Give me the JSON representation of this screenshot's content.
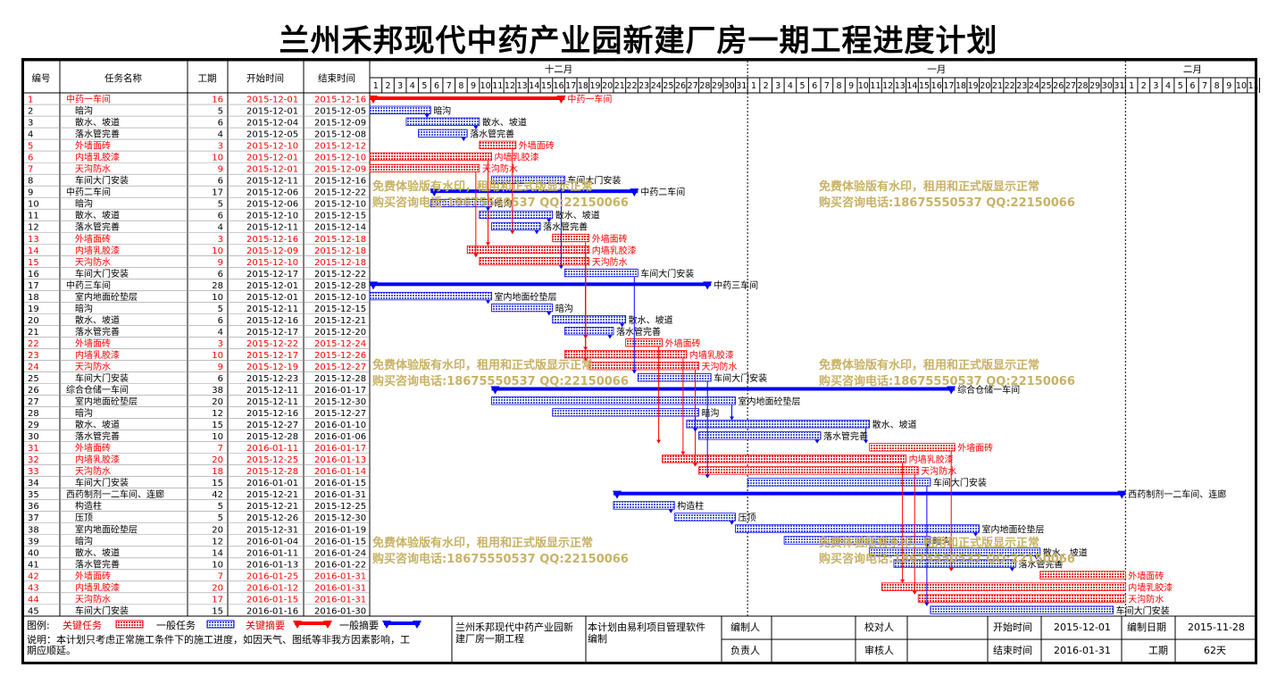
{
  "title": "兰州禾邦现代中药产业园新建厂房一期工程进度计划",
  "headers": {
    "id": "编号",
    "name": "任务名称",
    "dur": "工期",
    "start": "开始时间",
    "end": "结束时间"
  },
  "months": [
    {
      "label": "十二月",
      "days": 31
    },
    {
      "label": "一月",
      "days": 31
    },
    {
      "label": "二月",
      "days": 11
    }
  ],
  "watermarks": [
    "免费体验版有水印，租用和正式版显示正常",
    "购买咨询电话:18675550537 QQ:22150066"
  ],
  "colors": {
    "critical": "#ff0000",
    "normal": "#0000ff",
    "critical_fill": "#dd3333",
    "normal_fill": "#4f5fcf",
    "watermark": "#c8b266"
  },
  "chart_data": {
    "type": "gantt",
    "timeline_start": "2015-12-01",
    "timeline_end": "2016-02-11",
    "tasks": [
      {
        "id": "1",
        "name": "中药一车间",
        "dur": "16",
        "start": "2015-12-01",
        "end": "2015-12-16",
        "kind": "summary",
        "critical": true,
        "label": "中药一车间"
      },
      {
        "id": "2",
        "name": "暗沟",
        "dur": "5",
        "start": "2015-12-01",
        "end": "2015-12-05",
        "kind": "task",
        "critical": false,
        "label": "暗沟"
      },
      {
        "id": "3",
        "name": "散水、坡道",
        "dur": "6",
        "start": "2015-12-04",
        "end": "2015-12-09",
        "kind": "task",
        "critical": false,
        "label": "散水、坡道"
      },
      {
        "id": "4",
        "name": "落水管完善",
        "dur": "4",
        "start": "2015-12-05",
        "end": "2015-12-08",
        "kind": "task",
        "critical": false,
        "label": "落水管完善"
      },
      {
        "id": "5",
        "name": "外墙面砖",
        "dur": "3",
        "start": "2015-12-10",
        "end": "2015-12-12",
        "kind": "task",
        "critical": true,
        "label": "外墙面砖"
      },
      {
        "id": "6",
        "name": "内墙乳胶漆",
        "dur": "10",
        "start": "2015-12-01",
        "end": "2015-12-10",
        "kind": "task",
        "critical": true,
        "label": "内墙乳胶漆"
      },
      {
        "id": "7",
        "name": "天沟防水",
        "dur": "9",
        "start": "2015-12-01",
        "end": "2015-12-09",
        "kind": "task",
        "critical": true,
        "label": "天沟防水"
      },
      {
        "id": "8",
        "name": "车间大门安装",
        "dur": "6",
        "start": "2015-12-11",
        "end": "2015-12-16",
        "kind": "task",
        "critical": false,
        "label": "车间大门安装"
      },
      {
        "id": "9",
        "name": "中药二车间",
        "dur": "17",
        "start": "2015-12-06",
        "end": "2015-12-22",
        "kind": "summary",
        "critical": false,
        "label": "中药二车间"
      },
      {
        "id": "10",
        "name": "暗沟",
        "dur": "5",
        "start": "2015-12-06",
        "end": "2015-12-10",
        "kind": "task",
        "critical": false,
        "label": "暗沟"
      },
      {
        "id": "11",
        "name": "散水、坡道",
        "dur": "6",
        "start": "2015-12-10",
        "end": "2015-12-15",
        "kind": "task",
        "critical": false,
        "label": "散水、坡道"
      },
      {
        "id": "12",
        "name": "落水管完善",
        "dur": "4",
        "start": "2015-12-11",
        "end": "2015-12-14",
        "kind": "task",
        "critical": false,
        "label": "落水管完善"
      },
      {
        "id": "13",
        "name": "外墙面砖",
        "dur": "3",
        "start": "2015-12-16",
        "end": "2015-12-18",
        "kind": "task",
        "critical": true,
        "label": "外墙面砖"
      },
      {
        "id": "14",
        "name": "内墙乳胶漆",
        "dur": "10",
        "start": "2015-12-09",
        "end": "2015-12-18",
        "kind": "task",
        "critical": true,
        "label": "内墙乳胶漆"
      },
      {
        "id": "15",
        "name": "天沟防水",
        "dur": "9",
        "start": "2015-12-10",
        "end": "2015-12-18",
        "kind": "task",
        "critical": true,
        "label": "天沟防水"
      },
      {
        "id": "16",
        "name": "车间大门安装",
        "dur": "6",
        "start": "2015-12-17",
        "end": "2015-12-22",
        "kind": "task",
        "critical": false,
        "label": "车间大门安装"
      },
      {
        "id": "17",
        "name": "中药三车间",
        "dur": "28",
        "start": "2015-12-01",
        "end": "2015-12-28",
        "kind": "summary",
        "critical": false,
        "label": "中药三车间"
      },
      {
        "id": "18",
        "name": "室内地面砼垫层",
        "dur": "10",
        "start": "2015-12-01",
        "end": "2015-12-10",
        "kind": "task",
        "critical": false,
        "label": "室内地面砼垫层"
      },
      {
        "id": "19",
        "name": "暗沟",
        "dur": "5",
        "start": "2015-12-11",
        "end": "2015-12-15",
        "kind": "task",
        "critical": false,
        "label": "暗沟"
      },
      {
        "id": "20",
        "name": "散水、坡道",
        "dur": "6",
        "start": "2015-12-16",
        "end": "2015-12-21",
        "kind": "task",
        "critical": false,
        "label": "散水、坡道"
      },
      {
        "id": "21",
        "name": "落水管完善",
        "dur": "4",
        "start": "2015-12-17",
        "end": "2015-12-20",
        "kind": "task",
        "critical": false,
        "label": "落水管完善"
      },
      {
        "id": "22",
        "name": "外墙面砖",
        "dur": "3",
        "start": "2015-12-22",
        "end": "2015-12-24",
        "kind": "task",
        "critical": true,
        "label": "外墙面砖"
      },
      {
        "id": "23",
        "name": "内墙乳胶漆",
        "dur": "10",
        "start": "2015-12-17",
        "end": "2015-12-26",
        "kind": "task",
        "critical": true,
        "label": "内墙乳胶漆"
      },
      {
        "id": "24",
        "name": "天沟防水",
        "dur": "9",
        "start": "2015-12-19",
        "end": "2015-12-27",
        "kind": "task",
        "critical": true,
        "label": "天沟防水"
      },
      {
        "id": "25",
        "name": "车间大门安装",
        "dur": "6",
        "start": "2015-12-23",
        "end": "2015-12-28",
        "kind": "task",
        "critical": false,
        "label": "车间大门安装"
      },
      {
        "id": "26",
        "name": "综合仓储一车间",
        "dur": "38",
        "start": "2015-12-11",
        "end": "2016-01-17",
        "kind": "summary",
        "critical": false,
        "label": "综合仓储一车间"
      },
      {
        "id": "27",
        "name": "室内地面砼垫层",
        "dur": "20",
        "start": "2015-12-11",
        "end": "2015-12-30",
        "kind": "task",
        "critical": false,
        "label": "室内地面砼垫层"
      },
      {
        "id": "28",
        "name": "暗沟",
        "dur": "12",
        "start": "2015-12-16",
        "end": "2015-12-27",
        "kind": "task",
        "critical": false,
        "label": "暗沟"
      },
      {
        "id": "29",
        "name": "散水、坡道",
        "dur": "15",
        "start": "2015-12-27",
        "end": "2016-01-10",
        "kind": "task",
        "critical": false,
        "label": "散水、坡道"
      },
      {
        "id": "30",
        "name": "落水管完善",
        "dur": "10",
        "start": "2015-12-28",
        "end": "2016-01-06",
        "kind": "task",
        "critical": false,
        "label": "落水管完善"
      },
      {
        "id": "31",
        "name": "外墙面砖",
        "dur": "7",
        "start": "2016-01-11",
        "end": "2016-01-17",
        "kind": "task",
        "critical": true,
        "label": "外墙面砖"
      },
      {
        "id": "32",
        "name": "内墙乳胶漆",
        "dur": "20",
        "start": "2015-12-25",
        "end": "2016-01-13",
        "kind": "task",
        "critical": true,
        "label": "内墙乳胶漆"
      },
      {
        "id": "33",
        "name": "天沟防水",
        "dur": "18",
        "start": "2015-12-28",
        "end": "2016-01-14",
        "kind": "task",
        "critical": true,
        "label": "天沟防水"
      },
      {
        "id": "34",
        "name": "车间大门安装",
        "dur": "15",
        "start": "2016-01-01",
        "end": "2016-01-15",
        "kind": "task",
        "critical": false,
        "label": "车间大门安装"
      },
      {
        "id": "35",
        "name": "西药制剂一二车间、连廊",
        "dur": "42",
        "start": "2015-12-21",
        "end": "2016-01-31",
        "kind": "summary",
        "critical": false,
        "label": "西药制剂一二车间、连廊"
      },
      {
        "id": "36",
        "name": "构造柱",
        "dur": "5",
        "start": "2015-12-21",
        "end": "2015-12-25",
        "kind": "task",
        "critical": false,
        "label": "构造柱"
      },
      {
        "id": "37",
        "name": "压顶",
        "dur": "5",
        "start": "2015-12-26",
        "end": "2015-12-30",
        "kind": "task",
        "critical": false,
        "label": "压顶"
      },
      {
        "id": "38",
        "name": "室内地面砼垫层",
        "dur": "20",
        "start": "2015-12-31",
        "end": "2016-01-19",
        "kind": "task",
        "critical": false,
        "label": "室内地面砼垫层"
      },
      {
        "id": "39",
        "name": "暗沟",
        "dur": "12",
        "start": "2016-01-04",
        "end": "2016-01-15",
        "kind": "task",
        "critical": false,
        "label": "暗沟"
      },
      {
        "id": "40",
        "name": "散水、坡道",
        "dur": "14",
        "start": "2016-01-11",
        "end": "2016-01-24",
        "kind": "task",
        "critical": false,
        "label": "散水、坡道"
      },
      {
        "id": "41",
        "name": "落水管完善",
        "dur": "10",
        "start": "2016-01-13",
        "end": "2016-01-22",
        "kind": "task",
        "critical": false,
        "label": "落水管完善"
      },
      {
        "id": "42",
        "name": "外墙面砖",
        "dur": "7",
        "start": "2016-01-25",
        "end": "2016-01-31",
        "kind": "task",
        "critical": true,
        "label": "外墙面砖"
      },
      {
        "id": "43",
        "name": "内墙乳胶漆",
        "dur": "20",
        "start": "2016-01-12",
        "end": "2016-01-31",
        "kind": "task",
        "critical": true,
        "label": "内墙乳胶漆"
      },
      {
        "id": "44",
        "name": "天沟防水",
        "dur": "17",
        "start": "2016-01-15",
        "end": "2016-01-31",
        "kind": "task",
        "critical": true,
        "label": "天沟防水"
      },
      {
        "id": "45",
        "name": "车间大门安装",
        "dur": "15",
        "start": "2016-01-16",
        "end": "2016-01-30",
        "kind": "task",
        "critical": false,
        "label": "车间大门安装"
      }
    ]
  },
  "legend": {
    "title": "图例:",
    "items": [
      "关键任务",
      "一般任务",
      "关键摘要",
      "一般摘要"
    ]
  },
  "note": [
    "说明：本计划只考虑正常施工条件下的施工进度，如因天气、图纸等非我方因素影响，工",
    "期应顺延。"
  ],
  "footer": {
    "project_line1": "兰州禾邦现代中药产业园新",
    "project_line2": "建厂房一期工程",
    "software_line1": "本计划由易利项目管理软件",
    "software_line2": "编制",
    "prepared_by": "编制人",
    "checked_by": "校对人",
    "responsible": "负责人",
    "reviewed_by": "审核人",
    "start_label": "开始时间",
    "start_value": "2015-12-01",
    "end_label": "结束时间",
    "end_value": "2016-01-31",
    "made_label": "编制日期",
    "made_value": "2015-11-28",
    "dur_label": "工期",
    "dur_value": "62天"
  }
}
